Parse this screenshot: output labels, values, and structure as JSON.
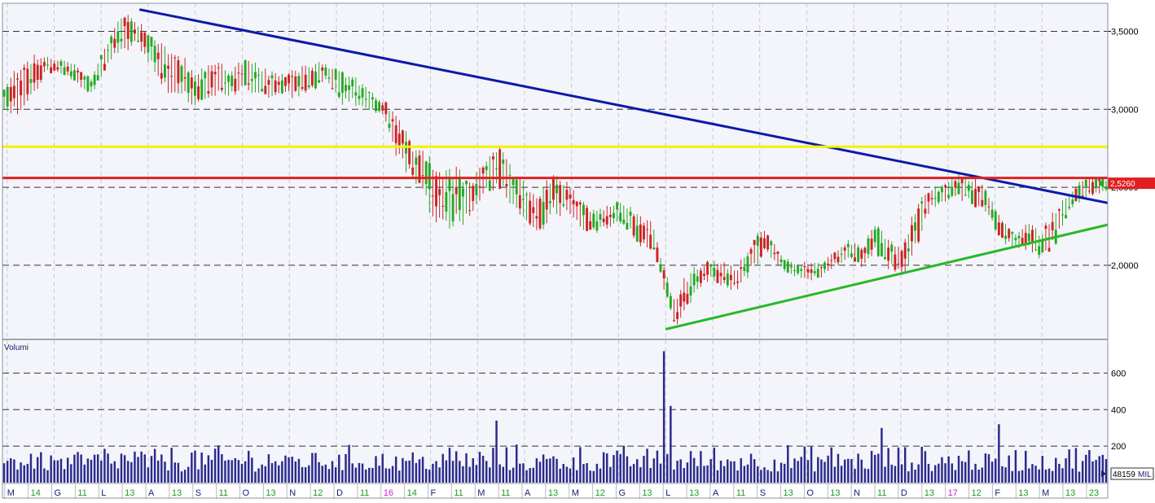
{
  "chart_data": [
    {
      "type": "candlestick",
      "title": "",
      "ylim": [
        1.53,
        3.68
      ],
      "yticks": [
        {
          "value": 2.0,
          "label": "2,0000"
        },
        {
          "value": 2.5,
          "label": "2,5000"
        },
        {
          "value": 3.0,
          "label": "3,0000"
        },
        {
          "value": 3.5,
          "label": "3,5000"
        }
      ],
      "last_price_label": "2,5260",
      "last_price": 2.526,
      "grid": true,
      "candles_approx": [
        [
          0.0,
          3.1,
          3.0
        ],
        [
          0.018,
          3.3,
          3.0
        ],
        [
          0.04,
          3.33,
          3.25
        ],
        [
          0.06,
          3.3,
          3.22
        ],
        [
          0.08,
          3.2,
          3.1
        ],
        [
          0.095,
          3.42,
          3.3
        ],
        [
          0.11,
          3.62,
          3.4
        ],
        [
          0.122,
          3.55,
          3.42
        ],
        [
          0.135,
          3.48,
          3.3
        ],
        [
          0.15,
          3.35,
          3.1
        ],
        [
          0.162,
          3.32,
          3.1
        ],
        [
          0.175,
          3.2,
          3.05
        ],
        [
          0.19,
          3.3,
          3.12
        ],
        [
          0.205,
          3.25,
          3.08
        ],
        [
          0.22,
          3.3,
          3.15
        ],
        [
          0.235,
          3.25,
          3.1
        ],
        [
          0.25,
          3.2,
          3.1
        ],
        [
          0.265,
          3.25,
          3.1
        ],
        [
          0.278,
          3.28,
          3.12
        ],
        [
          0.292,
          3.3,
          3.2
        ],
        [
          0.305,
          3.22,
          3.05
        ],
        [
          0.318,
          3.2,
          3.05
        ],
        [
          0.332,
          3.1,
          3.0
        ],
        [
          0.345,
          3.05,
          2.95
        ],
        [
          0.358,
          2.92,
          2.7
        ],
        [
          0.372,
          2.75,
          2.55
        ],
        [
          0.385,
          2.7,
          2.4
        ],
        [
          0.398,
          2.55,
          2.25
        ],
        [
          0.41,
          2.6,
          2.3
        ],
        [
          0.422,
          2.5,
          2.3
        ],
        [
          0.435,
          2.65,
          2.45
        ],
        [
          0.448,
          2.75,
          2.55
        ],
        [
          0.46,
          2.6,
          2.4
        ],
        [
          0.472,
          2.5,
          2.32
        ],
        [
          0.485,
          2.45,
          2.22
        ],
        [
          0.498,
          2.55,
          2.35
        ],
        [
          0.51,
          2.52,
          2.35
        ],
        [
          0.522,
          2.4,
          2.25
        ],
        [
          0.535,
          2.35,
          2.22
        ],
        [
          0.548,
          2.38,
          2.25
        ],
        [
          0.562,
          2.4,
          2.28
        ],
        [
          0.575,
          2.32,
          2.15
        ],
        [
          0.588,
          2.26,
          2.12
        ],
        [
          0.6,
          1.95,
          1.82
        ],
        [
          0.608,
          1.75,
          1.62
        ],
        [
          0.616,
          1.88,
          1.7
        ],
        [
          0.628,
          1.98,
          1.85
        ],
        [
          0.64,
          2.02,
          1.92
        ],
        [
          0.652,
          2.0,
          1.88
        ],
        [
          0.665,
          1.98,
          1.85
        ],
        [
          0.678,
          2.15,
          1.98
        ],
        [
          0.69,
          2.22,
          2.1
        ],
        [
          0.702,
          2.08,
          2.0
        ],
        [
          0.715,
          2.0,
          1.93
        ],
        [
          0.728,
          2.02,
          1.92
        ],
        [
          0.74,
          2.0,
          1.92
        ],
        [
          0.752,
          2.08,
          2.0
        ],
        [
          0.765,
          2.15,
          2.05
        ],
        [
          0.778,
          2.1,
          2.0
        ],
        [
          0.79,
          2.28,
          2.1
        ],
        [
          0.802,
          2.15,
          2.0
        ],
        [
          0.815,
          2.1,
          1.95
        ],
        [
          0.828,
          2.4,
          2.15
        ],
        [
          0.84,
          2.48,
          2.38
        ],
        [
          0.852,
          2.5,
          2.4
        ],
        [
          0.865,
          2.58,
          2.45
        ],
        [
          0.878,
          2.55,
          2.4
        ],
        [
          0.89,
          2.48,
          2.35
        ],
        [
          0.902,
          2.3,
          2.18
        ],
        [
          0.915,
          2.2,
          2.12
        ],
        [
          0.928,
          2.25,
          2.12
        ],
        [
          0.94,
          2.2,
          2.05
        ],
        [
          0.952,
          2.35,
          2.15
        ],
        [
          0.965,
          2.45,
          2.35
        ],
        [
          0.978,
          2.55,
          2.45
        ],
        [
          1.0,
          2.55,
          2.48
        ]
      ],
      "overlays": [
        {
          "name": "",
          "kind": "line",
          "from": [
            0.124,
            3.64
          ],
          "to": [
            1.0,
            2.4
          ],
          "color": "#0a1aa8"
        },
        {
          "name": "",
          "kind": "line",
          "from": [
            0.6,
            1.59
          ],
          "to": [
            1.0,
            2.26
          ],
          "color": "#27b827"
        },
        {
          "name": "",
          "kind": "hline",
          "value": 2.76,
          "color": "#f2f200"
        },
        {
          "name": "",
          "kind": "hline",
          "value": 2.56,
          "color": "#e02020"
        }
      ]
    },
    {
      "type": "bar",
      "title": "Volumi",
      "ylim": [
        0,
        780
      ],
      "yticks": [
        {
          "value": 200,
          "label": "200"
        },
        {
          "value": 400,
          "label": "400"
        },
        {
          "value": 600,
          "label": "600"
        }
      ],
      "last_value_label": "48159",
      "units_label": "MIL",
      "grid": true,
      "notable_values": [
        {
          "x": 0.6,
          "value": 720
        },
        {
          "x": 0.605,
          "value": 420
        },
        {
          "x": 0.448,
          "value": 340
        },
        {
          "x": 0.9,
          "value": 320
        },
        {
          "x": 0.795,
          "value": 300
        }
      ],
      "typical_range": [
        60,
        220
      ]
    }
  ],
  "x_axis": {
    "ticks": [
      {
        "label": "M",
        "type": "month"
      },
      {
        "label": "14",
        "type": "day"
      },
      {
        "label": "G",
        "type": "month"
      },
      {
        "label": "11",
        "type": "day"
      },
      {
        "label": "L",
        "type": "month"
      },
      {
        "label": "13",
        "type": "day"
      },
      {
        "label": "A",
        "type": "month"
      },
      {
        "label": "13",
        "type": "day"
      },
      {
        "label": "S",
        "type": "month"
      },
      {
        "label": "11",
        "type": "day"
      },
      {
        "label": "O",
        "type": "month"
      },
      {
        "label": "13",
        "type": "day"
      },
      {
        "label": "N",
        "type": "month"
      },
      {
        "label": "12",
        "type": "day"
      },
      {
        "label": "D",
        "type": "month"
      },
      {
        "label": "11",
        "type": "day"
      },
      {
        "label": "16",
        "type": "year"
      },
      {
        "label": "14",
        "type": "day"
      },
      {
        "label": "F",
        "type": "month"
      },
      {
        "label": "11",
        "type": "day"
      },
      {
        "label": "M",
        "type": "month"
      },
      {
        "label": "11",
        "type": "day"
      },
      {
        "label": "A",
        "type": "month"
      },
      {
        "label": "13",
        "type": "day"
      },
      {
        "label": "M",
        "type": "month"
      },
      {
        "label": "12",
        "type": "day"
      },
      {
        "label": "G",
        "type": "month"
      },
      {
        "label": "13",
        "type": "day"
      },
      {
        "label": "L",
        "type": "month"
      },
      {
        "label": "13",
        "type": "day"
      },
      {
        "label": "A",
        "type": "month"
      },
      {
        "label": "11",
        "type": "day"
      },
      {
        "label": "S",
        "type": "month"
      },
      {
        "label": "13",
        "type": "day"
      },
      {
        "label": "O",
        "type": "month"
      },
      {
        "label": "13",
        "type": "day"
      },
      {
        "label": "N",
        "type": "month"
      },
      {
        "label": "11",
        "type": "day"
      },
      {
        "label": "D",
        "type": "month"
      },
      {
        "label": "13",
        "type": "day"
      },
      {
        "label": "17",
        "type": "year"
      },
      {
        "label": "12",
        "type": "day"
      },
      {
        "label": "F",
        "type": "month"
      },
      {
        "label": "13",
        "type": "day"
      },
      {
        "label": "M",
        "type": "month"
      },
      {
        "label": "13",
        "type": "day"
      },
      {
        "label": "23",
        "type": "day"
      }
    ]
  },
  "colors": {
    "background": "#f4f4fb",
    "axis_bg": "#ffffff",
    "up": "#22aa22",
    "down": "#cc2222",
    "volume": "#2a2a8c",
    "month_text": "#1a1a70",
    "day_text": "#1c9a1c",
    "year_text": "#cc22cc",
    "grid_dash": "#333333",
    "vgrid": "#c8c8d4"
  }
}
